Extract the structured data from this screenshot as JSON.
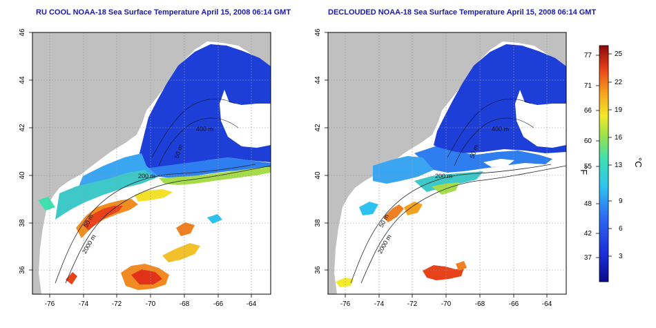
{
  "panels": [
    {
      "title": "RU COOL NOAA-18 Sea Surface Temperature April 15, 2008 06:14 GMT",
      "contour_labels": [
        "50 m",
        "2000 m",
        "200 m",
        "50 m",
        "400 m"
      ]
    },
    {
      "title": "DECLOUDED NOAA-18 Sea Surface Temperature April 15, 2008 06:14 GMT",
      "contour_labels": [
        "50 m",
        "2000 m",
        "200 m",
        "50 m",
        "400 m"
      ]
    }
  ],
  "axes": {
    "lon_ticks": [
      "-76",
      "-74",
      "-72",
      "-70",
      "-68",
      "-66",
      "-64"
    ],
    "lat_ticks": [
      "36",
      "38",
      "40",
      "42",
      "44",
      "46"
    ]
  },
  "colorbar": {
    "unit_f": "°F",
    "unit_c": "°C",
    "fahrenheit_ticks": [
      "77",
      "71",
      "66",
      "60",
      "55",
      "48",
      "42",
      "37"
    ],
    "celsius_ticks": [
      "25",
      "22",
      "19",
      "16",
      "13",
      "9",
      "6",
      "3"
    ]
  },
  "colors": {
    "land": "#c0c0c0",
    "cold": "#1e3ed8",
    "warm": "#e83a10",
    "title": "#1a1aa8"
  }
}
